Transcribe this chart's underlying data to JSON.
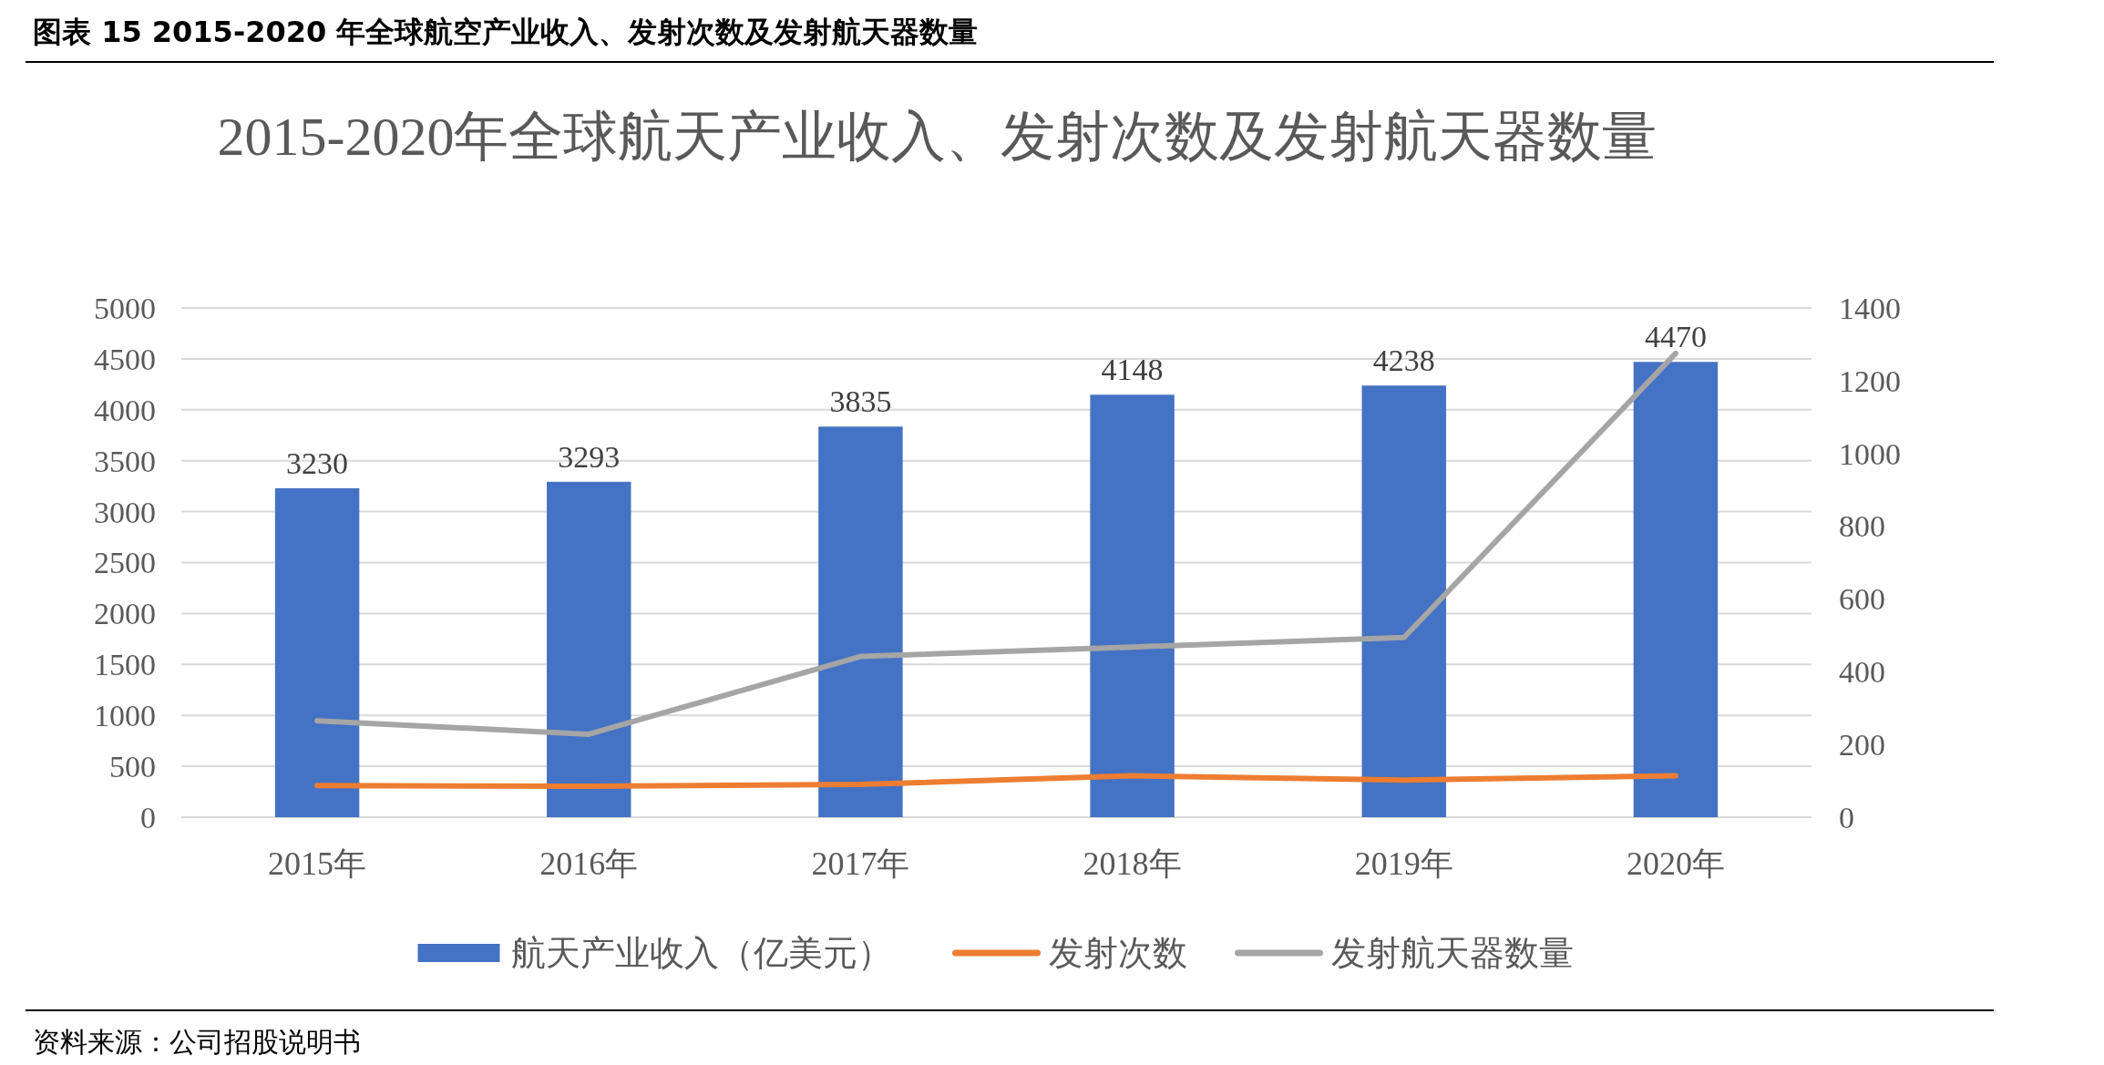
{
  "chart_data": {
    "type": "bar",
    "title": "图表 15 2015-2020 年全球航空产业收入、发射次数及发射航天器数量",
    "subtitle": "2015-2020年全球航天产业收入、发射次数及发射航天器数量",
    "categories": [
      "2015年",
      "2016年",
      "2017年",
      "2018年",
      "2019年",
      "2020年"
    ],
    "series": [
      {
        "name": "航天产业收入（亿美元）",
        "color": "#4472c4",
        "values": [
          3230,
          3293,
          3835,
          4148,
          4238,
          4470
        ],
        "value_labels": [
          "3230",
          "3293",
          "3835",
          "4148",
          "4238",
          "4470"
        ]
      },
      {
        "name": "发射次数",
        "type": "line",
        "axis": "y2",
        "color": "#ed7d31",
        "values": [
          87,
          85,
          90,
          114,
          102,
          114
        ]
      },
      {
        "name": "发射航天器数量",
        "type": "line",
        "axis": "y2",
        "color": "#a5a5a5",
        "values": [
          265,
          228,
          442,
          468,
          494,
          1275
        ]
      }
    ],
    "ylim": [
      0,
      5000
    ],
    "yticks": [
      0,
      500,
      1000,
      1500,
      2000,
      2500,
      3000,
      3500,
      4000,
      4500,
      5000
    ],
    "y2lim": [
      0,
      1400
    ],
    "y2ticks": [
      0,
      200,
      400,
      600,
      800,
      1000,
      1200,
      1400
    ],
    "grid": "y",
    "legend": "bottom",
    "line_style": "solid",
    "marker": "none",
    "annotations": [
      "资料来源：公司招股说明书"
    ]
  }
}
